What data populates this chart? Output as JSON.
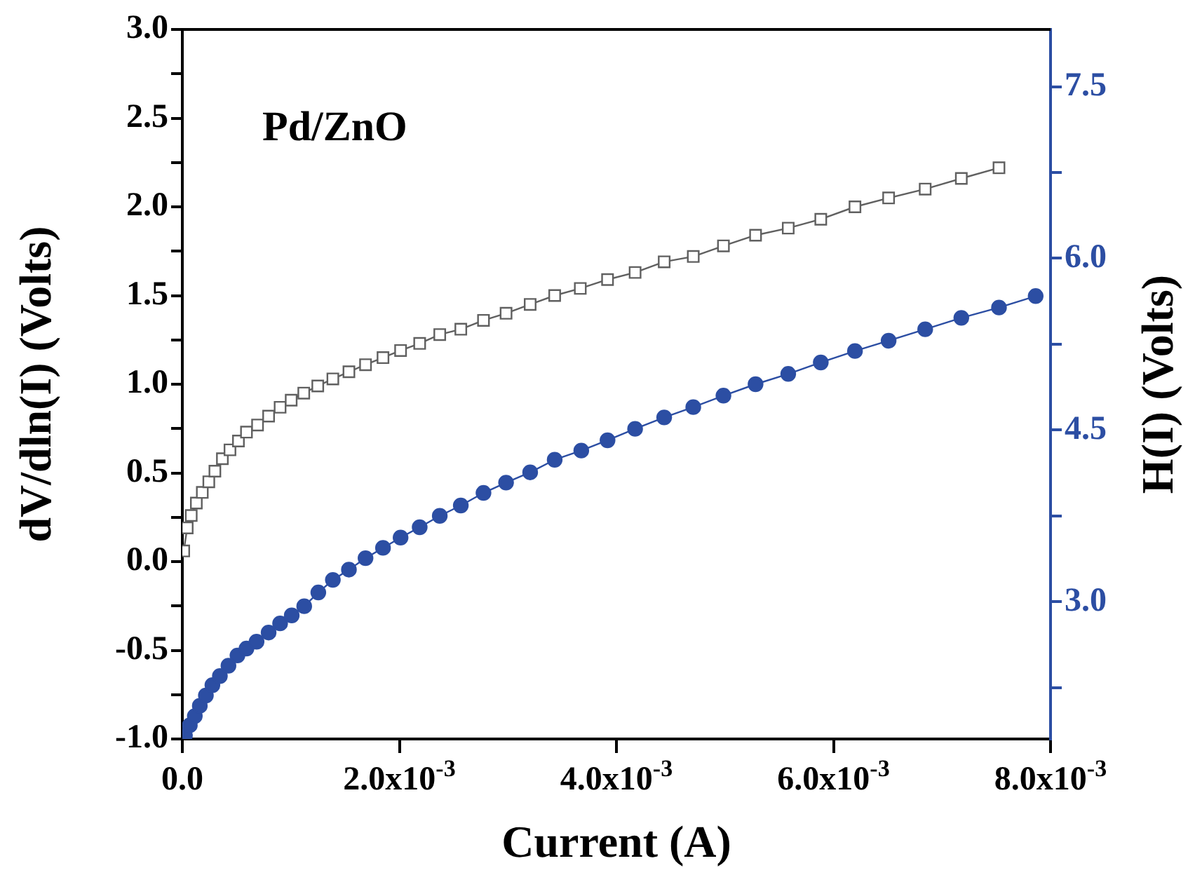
{
  "chart_data": {
    "type": "line",
    "xlabel": "Current (A)",
    "ylabel": "dV/dln(I) (Volts)",
    "y2label": "H(I) (Volts)",
    "annotations": [
      "Pd/ZnO"
    ],
    "xlim": [
      0,
      0.008
    ],
    "ylim": [
      -1,
      3
    ],
    "y2lim": [
      1.8,
      8.0
    ],
    "xticks": [
      {
        "value": 0,
        "label": "0.0"
      },
      {
        "value": 0.002,
        "label": "2.0x10$^{-3}$"
      },
      {
        "value": 0.004,
        "label": "4.0x10$^{-3}$"
      },
      {
        "value": 0.006,
        "label": "6.0x10$^{-3}$"
      },
      {
        "value": 0.008,
        "label": "8.0x10$^{-3}$"
      }
    ],
    "yticks": [
      {
        "value": -1,
        "label": "-1.0"
      },
      {
        "value": -0.75,
        "label": null
      },
      {
        "value": -0.5,
        "label": "-0.5"
      },
      {
        "value": -0.25,
        "label": null
      },
      {
        "value": 0,
        "label": "0.0"
      },
      {
        "value": 0.25,
        "label": null
      },
      {
        "value": 0.5,
        "label": "0.5"
      },
      {
        "value": 0.75,
        "label": null
      },
      {
        "value": 1,
        "label": "1.0"
      },
      {
        "value": 1.25,
        "label": null
      },
      {
        "value": 1.5,
        "label": "1.5"
      },
      {
        "value": 1.75,
        "label": null
      },
      {
        "value": 2,
        "label": "2.0"
      },
      {
        "value": 2.25,
        "label": null
      },
      {
        "value": 2.5,
        "label": "2.5"
      },
      {
        "value": 2.75,
        "label": null
      },
      {
        "value": 3,
        "label": "3.0"
      }
    ],
    "y2ticks": [
      {
        "value": 2.25,
        "label": null
      },
      {
        "value": 3,
        "label": "3.0"
      },
      {
        "value": 3.75,
        "label": null
      },
      {
        "value": 4.5,
        "label": "4.5"
      },
      {
        "value": 5.25,
        "label": null
      },
      {
        "value": 6,
        "label": "6.0"
      },
      {
        "value": 6.75,
        "label": null
      },
      {
        "value": 7.5,
        "label": "7.5"
      }
    ],
    "grid": false,
    "legend": false,
    "series": [
      {
        "marker": "square",
        "color": "#606060",
        "x": [
          1.3e-05,
          4.5e-05,
          8.2e-05,
          0.000129,
          0.000184,
          0.000244,
          0.0003,
          0.000369,
          0.000439,
          0.000517,
          0.000591,
          0.000693,
          0.000795,
          0.000901,
          0.001003,
          0.001119,
          0.001248,
          0.001387,
          0.001535,
          0.001688,
          0.001849,
          0.002011,
          0.002187,
          0.002372,
          0.002566,
          0.002775,
          0.002983,
          0.003205,
          0.003431,
          0.003667,
          0.003918,
          0.004172,
          0.00444,
          0.004708,
          0.004986,
          0.005282,
          0.005583,
          0.005883,
          0.006198,
          0.006508,
          0.006845,
          0.007178,
          0.007525
        ],
        "values": [
          0.06,
          0.19,
          0.26,
          0.33,
          0.39,
          0.45,
          0.51,
          0.58,
          0.63,
          0.68,
          0.73,
          0.77,
          0.82,
          0.87,
          0.91,
          0.95,
          0.99,
          1.03,
          1.07,
          1.11,
          1.15,
          1.19,
          1.23,
          1.28,
          1.31,
          1.36,
          1.4,
          1.45,
          1.5,
          1.54,
          1.59,
          1.63,
          1.69,
          1.72,
          1.78,
          1.84,
          1.88,
          1.93,
          2.0,
          2.05,
          2.1,
          2.16,
          2.22
        ]
      },
      {
        "marker": "circle",
        "color": "#2c4ea3",
        "axis": "y2",
        "x": [
          2.4e-05,
          6.9e-05,
          0.000115,
          0.000161,
          0.000217,
          0.000277,
          0.000346,
          0.000425,
          0.000508,
          0.000591,
          0.000684,
          0.000795,
          0.000901,
          0.001008,
          0.001123,
          0.001253,
          0.001387,
          0.001535,
          0.001688,
          0.001849,
          0.002011,
          0.002187,
          0.002372,
          0.002566,
          0.002775,
          0.002983,
          0.003205,
          0.003431,
          0.003676,
          0.003918,
          0.004172,
          0.00444,
          0.004708,
          0.004986,
          0.005282,
          0.005583,
          0.005883,
          0.006198,
          0.006508,
          0.006845,
          0.007178,
          0.007525,
          0.007863
        ],
        "values": [
          1.83,
          1.92,
          2.0,
          2.09,
          2.18,
          2.27,
          2.35,
          2.44,
          2.53,
          2.59,
          2.65,
          2.73,
          2.81,
          2.88,
          2.96,
          3.08,
          3.19,
          3.28,
          3.38,
          3.47,
          3.56,
          3.65,
          3.75,
          3.84,
          3.95,
          4.04,
          4.13,
          4.24,
          4.32,
          4.41,
          4.51,
          4.61,
          4.7,
          4.8,
          4.9,
          4.99,
          5.09,
          5.19,
          5.28,
          5.38,
          5.48,
          5.57,
          5.67
        ]
      }
    ]
  }
}
